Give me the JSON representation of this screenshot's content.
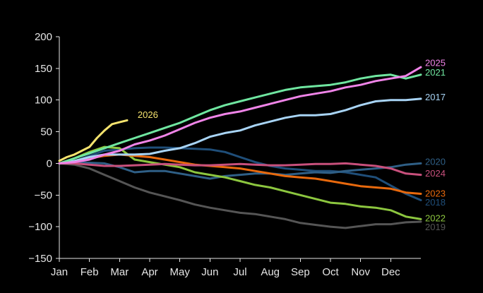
{
  "chart_data": {
    "type": "line",
    "title": "",
    "xlabel": "",
    "ylabel": "",
    "ylim": [
      -150,
      200
    ],
    "xlim": [
      0,
      12
    ],
    "yticks": [
      "200",
      "150",
      "100",
      "50",
      "0",
      "−50",
      "−100",
      "−150"
    ],
    "ytick_values": [
      200,
      150,
      100,
      50,
      0,
      -50,
      -100,
      -150
    ],
    "xticks": [
      "Jan",
      "Feb",
      "Mar",
      "Apr",
      "May",
      "Jun",
      "Jul",
      "Aug",
      "Sep",
      "Oct",
      "Nov",
      "Dec"
    ],
    "grid": false,
    "background": "#000000",
    "series": [
      {
        "name": "2019",
        "color": "#555555",
        "x": [
          0,
          0.5,
          1,
          1.5,
          2,
          2.5,
          3,
          3.5,
          4,
          4.5,
          5,
          5.5,
          6,
          6.5,
          7,
          7.5,
          8,
          8.5,
          9,
          9.5,
          10,
          10.5,
          11,
          11.5,
          12
        ],
        "y": [
          0,
          -2,
          -8,
          -18,
          -28,
          -38,
          -46,
          -52,
          -58,
          -65,
          -70,
          -74,
          -78,
          -80,
          -84,
          -88,
          -94,
          -97,
          -100,
          -102,
          -99,
          -96,
          -96,
          -93,
          -92
        ]
      },
      {
        "name": "2018",
        "color": "#1f4e79",
        "x": [
          0,
          0.5,
          1,
          1.5,
          2,
          2.5,
          3,
          3.5,
          4,
          4.5,
          5,
          5.5,
          6,
          6.5,
          7,
          7.5,
          8,
          8.5,
          9,
          9.5,
          10,
          10.5,
          11,
          11.5,
          12
        ],
        "y": [
          0,
          3,
          12,
          20,
          22,
          24,
          25,
          25,
          24,
          23,
          22,
          18,
          10,
          2,
          -4,
          -8,
          -10,
          -12,
          -12,
          -14,
          -18,
          -22,
          -35,
          -48,
          -58
        ]
      },
      {
        "name": "2020",
        "color": "#2f5f86",
        "x": [
          0,
          0.5,
          1,
          1.5,
          2,
          2.5,
          3,
          3.5,
          4,
          4.5,
          5,
          5.5,
          6,
          6.5,
          7,
          7.5,
          8,
          8.5,
          9,
          9.5,
          10,
          10.5,
          11,
          11.5,
          12
        ],
        "y": [
          0,
          2,
          1,
          0,
          -6,
          -14,
          -12,
          -12,
          -16,
          -20,
          -24,
          -20,
          -18,
          -16,
          -16,
          -18,
          -16,
          -14,
          -15,
          -12,
          -10,
          -8,
          -6,
          -2,
          0
        ]
      },
      {
        "name": "2022",
        "color": "#8cc63f",
        "x": [
          0,
          0.5,
          1,
          1.5,
          2,
          2.5,
          3,
          3.5,
          4,
          4.5,
          5,
          5.5,
          6,
          6.5,
          7,
          7.5,
          8,
          8.5,
          9,
          9.5,
          10,
          10.5,
          11,
          11.5,
          12
        ],
        "y": [
          0,
          8,
          18,
          26,
          24,
          6,
          2,
          -2,
          -6,
          -14,
          -18,
          -22,
          -28,
          -34,
          -38,
          -44,
          -50,
          -56,
          -62,
          -64,
          -68,
          -70,
          -74,
          -84,
          -88
        ]
      },
      {
        "name": "2023",
        "color": "#e8690d",
        "x": [
          0,
          0.5,
          1,
          1.5,
          2,
          2.5,
          3,
          3.5,
          4,
          4.5,
          5,
          5.5,
          6,
          6.5,
          7,
          7.5,
          8,
          8.5,
          9,
          9.5,
          10,
          10.5,
          11,
          11.5,
          12
        ],
        "y": [
          0,
          3,
          8,
          12,
          14,
          12,
          10,
          6,
          2,
          -2,
          -4,
          -6,
          -8,
          -12,
          -16,
          -20,
          -22,
          -24,
          -28,
          -32,
          -36,
          -38,
          -40,
          -46,
          -48
        ]
      },
      {
        "name": "2024",
        "color": "#c8507c",
        "x": [
          0,
          0.5,
          1,
          1.5,
          2,
          2.5,
          3,
          3.5,
          4,
          4.5,
          5,
          5.5,
          6,
          6.5,
          7,
          7.5,
          8,
          8.5,
          9,
          9.5,
          10,
          10.5,
          11,
          11.5,
          12
        ],
        "y": [
          0,
          0,
          -2,
          -4,
          -4,
          -3,
          -2,
          -1,
          -2,
          -3,
          -3,
          -2,
          -1,
          -2,
          -3,
          -3,
          -2,
          -1,
          -1,
          0,
          -2,
          -4,
          -8,
          -16,
          -18
        ]
      },
      {
        "name": "2017",
        "color": "#a8d4f5",
        "x": [
          0,
          0.5,
          1,
          1.5,
          2,
          2.5,
          3,
          3.5,
          4,
          4.5,
          5,
          5.5,
          6,
          6.5,
          7,
          7.5,
          8,
          8.5,
          9,
          9.5,
          10,
          10.5,
          11,
          11.5,
          12
        ],
        "y": [
          0,
          4,
          10,
          14,
          14,
          14,
          15,
          20,
          24,
          32,
          42,
          48,
          52,
          60,
          66,
          72,
          76,
          76,
          78,
          84,
          92,
          98,
          100,
          100,
          102
        ]
      },
      {
        "name": "2021",
        "color": "#6fe6a0",
        "x": [
          0,
          0.5,
          1,
          1.5,
          2,
          2.5,
          3,
          3.5,
          4,
          4.5,
          5,
          5.5,
          6,
          6.5,
          7,
          7.5,
          8,
          8.5,
          9,
          9.5,
          10,
          10.5,
          11,
          11.5,
          12
        ],
        "y": [
          0,
          8,
          16,
          24,
          32,
          40,
          48,
          56,
          64,
          74,
          84,
          92,
          98,
          104,
          110,
          116,
          120,
          122,
          124,
          128,
          134,
          138,
          140,
          134,
          140
        ]
      },
      {
        "name": "2025",
        "color": "#f084e8",
        "x": [
          0,
          0.5,
          1,
          1.5,
          2,
          2.5,
          3,
          3.5,
          4,
          4.5,
          5,
          5.5,
          6,
          6.5,
          7,
          7.5,
          8,
          8.5,
          9,
          9.5,
          10,
          10.5,
          11,
          11.5,
          12
        ],
        "y": [
          0,
          2,
          6,
          14,
          20,
          30,
          36,
          44,
          54,
          64,
          72,
          78,
          82,
          88,
          94,
          100,
          106,
          110,
          114,
          120,
          124,
          130,
          134,
          138,
          152
        ]
      },
      {
        "name": "2026",
        "color": "#f5e36e",
        "x": [
          0,
          0.25,
          0.5,
          0.75,
          1,
          1.25,
          1.5,
          1.75,
          2,
          2.25
        ],
        "y": [
          4,
          10,
          14,
          20,
          26,
          40,
          52,
          62,
          65,
          68
        ]
      }
    ],
    "end_labels": [
      {
        "text": "2025",
        "series": "2025",
        "color": "#f084e8",
        "y": 158
      },
      {
        "text": "2021",
        "series": "2021",
        "color": "#6fe6a0",
        "y": 143
      },
      {
        "text": "2017",
        "series": "2017",
        "color": "#a8d4f5",
        "y": 104
      },
      {
        "text": "2020",
        "series": "2020",
        "color": "#2f5f86",
        "y": 2
      },
      {
        "text": "2024",
        "series": "2024",
        "color": "#c8507c",
        "y": -16
      },
      {
        "text": "2023",
        "series": "2023",
        "color": "#e8690d",
        "y": -48
      },
      {
        "text": "2018",
        "series": "2018",
        "color": "#1f4e79",
        "y": -62
      },
      {
        "text": "2022",
        "series": "2022",
        "color": "#8cc63f",
        "y": -87
      },
      {
        "text": "2019",
        "series": "2019",
        "color": "#555555",
        "y": -101
      }
    ],
    "inline_label": {
      "text": "2026",
      "color": "#f5e36e",
      "x": 2.6,
      "y": 72
    }
  }
}
